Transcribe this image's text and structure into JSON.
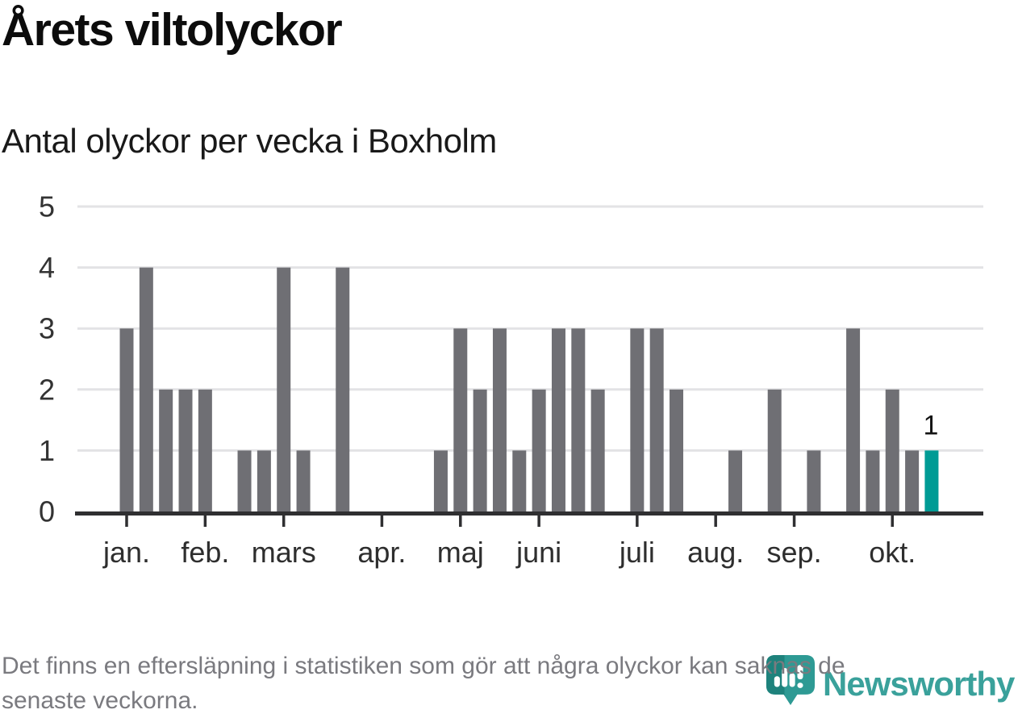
{
  "header": {
    "title": "Årets viltolyckor",
    "subtitle": "Antal olyckor per vecka i Boxholm"
  },
  "chart_data": {
    "type": "bar",
    "title": "Årets viltolyckor",
    "subtitle": "Antal olyckor per vecka i Boxholm",
    "x_unit": "vecka",
    "week_numbers": [
      1,
      2,
      3,
      4,
      5,
      6,
      7,
      8,
      9,
      10,
      11,
      12,
      13,
      14,
      15,
      16,
      17,
      18,
      19,
      20,
      21,
      22,
      23,
      24,
      25,
      26,
      27,
      28,
      29,
      30,
      31,
      32,
      33,
      34,
      35,
      36,
      37,
      38,
      39,
      40,
      41,
      42
    ],
    "values": [
      3,
      4,
      2,
      2,
      2,
      0,
      1,
      1,
      4,
      1,
      0,
      4,
      0,
      0,
      0,
      0,
      1,
      3,
      2,
      3,
      1,
      2,
      3,
      3,
      2,
      0,
      3,
      3,
      2,
      0,
      0,
      1,
      0,
      2,
      0,
      1,
      0,
      3,
      1,
      2,
      1,
      1
    ],
    "ylim": [
      0,
      5
    ],
    "y_ticks": [
      0,
      1,
      2,
      3,
      4,
      5
    ],
    "grid": "horizontal",
    "legend": "none",
    "x_tick_labels": [
      {
        "week": 1,
        "label": "jan."
      },
      {
        "week": 5,
        "label": "feb."
      },
      {
        "week": 9,
        "label": "mars"
      },
      {
        "week": 14,
        "label": "apr."
      },
      {
        "week": 18,
        "label": "maj"
      },
      {
        "week": 22,
        "label": "juni"
      },
      {
        "week": 27,
        "label": "juli"
      },
      {
        "week": 31,
        "label": "aug."
      },
      {
        "week": 35,
        "label": "sep."
      },
      {
        "week": 40,
        "label": "okt."
      }
    ],
    "highlight_index": 41,
    "annotations": [
      {
        "index": 41,
        "text": "1"
      }
    ],
    "colors": {
      "bar": "#6F6F74",
      "highlight": "#009B95",
      "grid": "#E3E3E5",
      "axis": "#2F2F31",
      "axis_label": "#333333",
      "month_label": "#2E2E2E",
      "annotation": "#141414"
    }
  },
  "footer": {
    "lines": [
      "Det finns en eftersläpning i statistiken som gör att några olyckor kan saknas de",
      "senaste veckorna."
    ]
  },
  "logo": {
    "text": "Newsworthy",
    "icon": "newsworthy-bubble-chart-icon",
    "color": "#3AA19B"
  }
}
